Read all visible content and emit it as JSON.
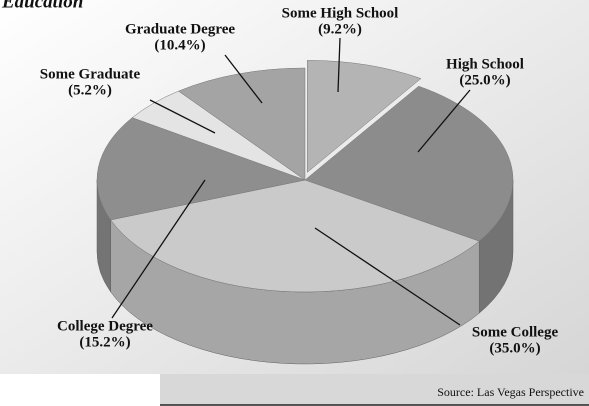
{
  "chart_data": {
    "type": "pie",
    "title": "Education",
    "categories": [
      "Some High School",
      "High School",
      "Some College",
      "College Degree",
      "Some Graduate",
      "Graduate Degree"
    ],
    "values": [
      9.2,
      25.0,
      35.0,
      15.2,
      5.2,
      10.4
    ],
    "value_labels": [
      "(9.2%)",
      "(25.0%)",
      "(35.0%)",
      "(15.2%)",
      "(5.2%)",
      "(10.4%)"
    ],
    "colors": [
      "#b4b4b4",
      "#8c8c8c",
      "#cacaca",
      "#8e8e8e",
      "#e4e4e4",
      "#a4a4a4"
    ],
    "source": "Source: Las Vegas Perspective"
  }
}
